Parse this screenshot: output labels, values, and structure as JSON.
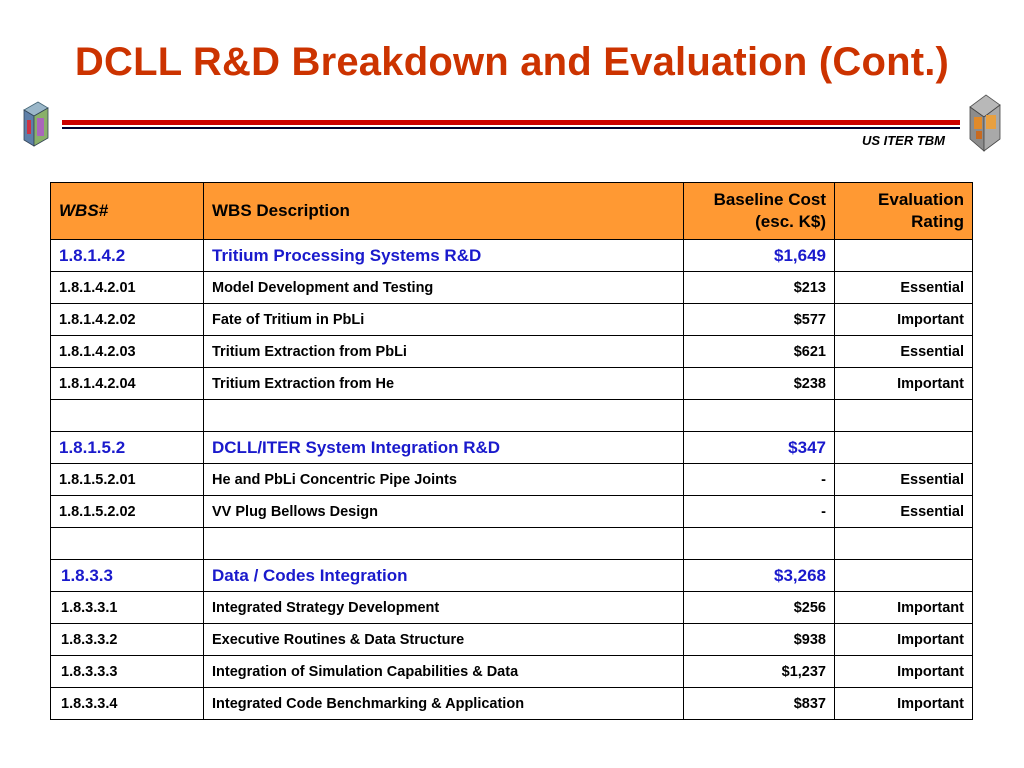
{
  "title": "DCLL R&D Breakdown and Evaluation (Cont.)",
  "subtitle": "US ITER TBM",
  "table": {
    "headers": {
      "wbs": "WBS#",
      "description": "WBS Description",
      "cost_line1": "Baseline Cost",
      "cost_line2": "(esc. K$)",
      "rating_line1": "Evaluation",
      "rating_line2": "Rating"
    },
    "rows": [
      {
        "kind": "major",
        "wbs": "1.8.1.4.2",
        "description": "Tritium Processing Systems R&D",
        "cost": "$1,649",
        "rating": ""
      },
      {
        "kind": "minor",
        "wbs": "1.8.1.4.2.01",
        "description": "Model Development and Testing",
        "cost": "$213",
        "rating": "Essential"
      },
      {
        "kind": "minor",
        "wbs": "1.8.1.4.2.02",
        "description": "Fate of Tritium in PbLi",
        "cost": "$577",
        "rating": "Important"
      },
      {
        "kind": "minor",
        "wbs": "1.8.1.4.2.03",
        "description": "Tritium Extraction from PbLi",
        "cost": "$621",
        "rating": "Essential"
      },
      {
        "kind": "minor",
        "wbs": "1.8.1.4.2.04",
        "description": "Tritium Extraction from He",
        "cost": "$238",
        "rating": "Important"
      },
      {
        "kind": "blank",
        "wbs": "",
        "description": "",
        "cost": "",
        "rating": ""
      },
      {
        "kind": "major",
        "wbs": "1.8.1.5.2",
        "description": "DCLL/ITER System Integration R&D",
        "cost": "$347",
        "rating": ""
      },
      {
        "kind": "minor",
        "wbs": "1.8.1.5.2.01",
        "description": "He and PbLi Concentric Pipe Joints",
        "cost": "-",
        "rating": "Essential"
      },
      {
        "kind": "minor",
        "wbs": "1.8.1.5.2.02",
        "description": "VV Plug Bellows Design",
        "cost": "-",
        "rating": "Essential"
      },
      {
        "kind": "blank",
        "wbs": "",
        "description": "",
        "cost": "",
        "rating": ""
      },
      {
        "kind": "major",
        "flush": true,
        "wbs": "1.8.3.3",
        "description": "Data / Codes Integration",
        "cost": "$3,268",
        "rating": ""
      },
      {
        "kind": "minor",
        "flush": true,
        "wbs": "1.8.3.3.1",
        "description": "Integrated Strategy Development",
        "cost": "$256",
        "rating": "Important"
      },
      {
        "kind": "minor",
        "flush": true,
        "wbs": "1.8.3.3.2",
        "description": "Executive Routines & Data Structure",
        "cost": "$938",
        "rating": "Important"
      },
      {
        "kind": "minor",
        "flush": true,
        "wbs": "1.8.3.3.3",
        "description": "Integration of Simulation Capabilities & Data",
        "cost": "$1,237",
        "rating": "Important"
      },
      {
        "kind": "minor",
        "flush": true,
        "wbs": "1.8.3.3.4",
        "description": "Integrated Code Benchmarking & Application",
        "cost": "$837",
        "rating": "Important"
      }
    ]
  },
  "colors": {
    "title": "#cc3300",
    "header_fill": "#ff9933",
    "major_text": "#1a1acc",
    "rule_red": "#cc0000"
  },
  "icons": {
    "left": "iter-blanket-module-icon",
    "right": "iter-blanket-module-icon"
  }
}
